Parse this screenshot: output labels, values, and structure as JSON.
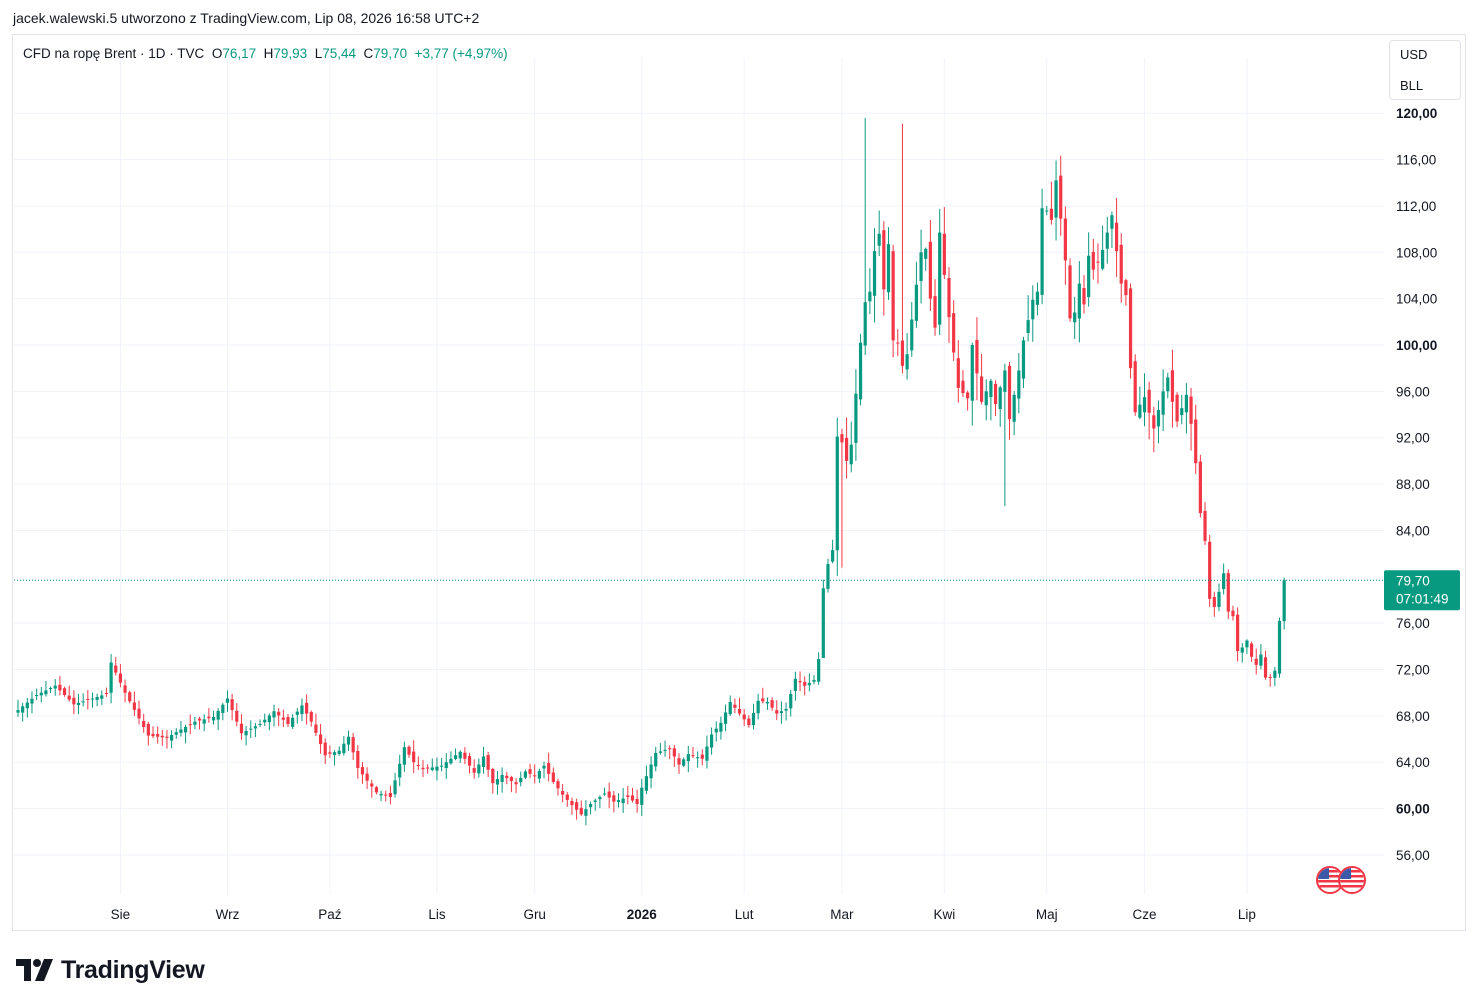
{
  "header": {
    "credit": "jacek.walewski.5 utworzono z TradingView.com, Lip 08, 2026 16:58 UTC+2"
  },
  "legend": {
    "symbol": "CFD na ropę Brent · 1D · TVC",
    "open_label": "O",
    "open": "76,17",
    "high_label": "H",
    "high": "79,93",
    "low_label": "L",
    "low": "75,44",
    "close_label": "C",
    "close": "79,70",
    "change": "+3,77 (+4,97%)"
  },
  "unit_selector": {
    "currency": "USD",
    "unit": "BLL"
  },
  "price_label": {
    "price": "79,70",
    "countdown": "07:01:49"
  },
  "brand": {
    "name": "TradingView"
  },
  "colors": {
    "up": "#089981",
    "down": "#f23645",
    "grid": "#f0f3fa",
    "axis_text": "#131722"
  },
  "icons": {
    "brand": "tradingview-logo-icon",
    "flags": "us-flag-icon"
  },
  "chart_data": {
    "type": "candlestick",
    "title": "CFD na ropę Brent",
    "interval": "1D",
    "currency": "USD",
    "ylim": [
      51,
      123
    ],
    "y_ticks": [
      {
        "value": 56,
        "label": "56,00"
      },
      {
        "value": 60,
        "label": "60,00"
      },
      {
        "value": 64,
        "label": "64,00"
      },
      {
        "value": 68,
        "label": "68,00"
      },
      {
        "value": 72,
        "label": "72,00"
      },
      {
        "value": 76,
        "label": "76,00"
      },
      {
        "value": 84,
        "label": "84,00"
      },
      {
        "value": 88,
        "label": "88,00"
      },
      {
        "value": 92,
        "label": "92,00"
      },
      {
        "value": 96,
        "label": "96,00"
      },
      {
        "value": 100,
        "label": "100,00"
      },
      {
        "value": 104,
        "label": "104,00"
      },
      {
        "value": 108,
        "label": "108,00"
      },
      {
        "value": 112,
        "label": "112,00"
      },
      {
        "value": 116,
        "label": "116,00"
      },
      {
        "value": 120,
        "label": "120,00"
      }
    ],
    "x_ticks": [
      {
        "index": 22,
        "label": "Sie"
      },
      {
        "index": 45,
        "label": "Wrz"
      },
      {
        "index": 67,
        "label": "Paź"
      },
      {
        "index": 90,
        "label": "Lis"
      },
      {
        "index": 111,
        "label": "Gru"
      },
      {
        "index": 134,
        "label": "2026"
      },
      {
        "index": 156,
        "label": "Lut"
      },
      {
        "index": 177,
        "label": "Mar"
      },
      {
        "index": 199,
        "label": "Kwi"
      },
      {
        "index": 221,
        "label": "Maj"
      },
      {
        "index": 242,
        "label": "Cze"
      },
      {
        "index": 264,
        "label": "Lip"
      }
    ],
    "last_price": 79.7,
    "path": [
      [
        0,
        68.5
      ],
      [
        4,
        69.8
      ],
      [
        8,
        70.6
      ],
      [
        12,
        69.0
      ],
      [
        16,
        69.5
      ],
      [
        19,
        69.9
      ],
      [
        20,
        72.6
      ],
      [
        23,
        70.0
      ],
      [
        28,
        66.3
      ],
      [
        32,
        66.1
      ],
      [
        34,
        66.6
      ],
      [
        38,
        67.5
      ],
      [
        42,
        67.9
      ],
      [
        45,
        69.5
      ],
      [
        48,
        66.5
      ],
      [
        52,
        67.3
      ],
      [
        55,
        68.4
      ],
      [
        58,
        67.3
      ],
      [
        61,
        68.9
      ],
      [
        63,
        67.5
      ],
      [
        66,
        64.6
      ],
      [
        69,
        65.0
      ],
      [
        71,
        66.2
      ],
      [
        73,
        63.5
      ],
      [
        75,
        62.4
      ],
      [
        77,
        61.4
      ],
      [
        80,
        61.0
      ],
      [
        83,
        65.3
      ],
      [
        85,
        64.0
      ],
      [
        87,
        63.4
      ],
      [
        91,
        63.7
      ],
      [
        95,
        64.9
      ],
      [
        98,
        63.1
      ],
      [
        100,
        64.5
      ],
      [
        102,
        62.2
      ],
      [
        104,
        62.9
      ],
      [
        107,
        62.1
      ],
      [
        109,
        63.2
      ],
      [
        111,
        62.8
      ],
      [
        113,
        63.7
      ],
      [
        115,
        62.3
      ],
      [
        117,
        61.2
      ],
      [
        119,
        60.3
      ],
      [
        121,
        59.5
      ],
      [
        123,
        60.4
      ],
      [
        126,
        61.3
      ],
      [
        128,
        60.6
      ],
      [
        131,
        61.0
      ],
      [
        133,
        60.4
      ],
      [
        134,
        61.8
      ],
      [
        137,
        64.8
      ],
      [
        140,
        65.2
      ],
      [
        142,
        63.8
      ],
      [
        144,
        64.7
      ],
      [
        147,
        64.3
      ],
      [
        149,
        66.4
      ],
      [
        151,
        67.4
      ],
      [
        153,
        69.2
      ],
      [
        155,
        68.2
      ],
      [
        157,
        67.2
      ],
      [
        159,
        69.3
      ],
      [
        161,
        69.2
      ],
      [
        163,
        68.2
      ],
      [
        165,
        68.6
      ],
      [
        167,
        71.2
      ],
      [
        169,
        70.6
      ],
      [
        171,
        71.1
      ],
      [
        172,
        72.9
      ],
      [
        173,
        79.0
      ],
      [
        174,
        81.1
      ],
      [
        175,
        82.3
      ],
      [
        176,
        92.1
      ],
      [
        177,
        91.6
      ],
      [
        178,
        90.0
      ],
      [
        179,
        91.4
      ],
      [
        181,
        100.2
      ],
      [
        182,
        103.7
      ],
      [
        183,
        104.6
      ],
      [
        184,
        108.1
      ],
      [
        185,
        109.6
      ],
      [
        186,
        104.8
      ],
      [
        187,
        108.7
      ],
      [
        188,
        100.4
      ],
      [
        189,
        100.2
      ],
      [
        190,
        98.2
      ],
      [
        191,
        99.2
      ],
      [
        193,
        105.2
      ],
      [
        194,
        108.0
      ],
      [
        195,
        108.3
      ],
      [
        196,
        104.0
      ],
      [
        197,
        101.5
      ],
      [
        198,
        109.7
      ],
      [
        200,
        102.4
      ],
      [
        202,
        96.3
      ],
      [
        204,
        95.4
      ],
      [
        205,
        100.0
      ],
      [
        207,
        95.1
      ],
      [
        209,
        96.9
      ],
      [
        210,
        94.9
      ],
      [
        212,
        97.8
      ],
      [
        213,
        93.6
      ],
      [
        215,
        97.8
      ],
      [
        216,
        100.4
      ],
      [
        218,
        103.9
      ],
      [
        219,
        104.6
      ],
      [
        220,
        111.8
      ],
      [
        221,
        111.6
      ],
      [
        222,
        110.8
      ],
      [
        223,
        114.2
      ],
      [
        224,
        110.9
      ],
      [
        225,
        107.3
      ],
      [
        226,
        102.3
      ],
      [
        227,
        102.8
      ],
      [
        228,
        105.3
      ],
      [
        229,
        103.5
      ],
      [
        230,
        107.7
      ],
      [
        231,
        106.5
      ],
      [
        232,
        107.1
      ],
      [
        233,
        108.2
      ],
      [
        235,
        111.2
      ],
      [
        236,
        108.1
      ],
      [
        237,
        105.3
      ],
      [
        238,
        104.3
      ],
      [
        239,
        98.0
      ],
      [
        240,
        94.2
      ],
      [
        242,
        95.5
      ],
      [
        244,
        92.8
      ],
      [
        246,
        96.0
      ],
      [
        247,
        97.2
      ],
      [
        248,
        95.1
      ],
      [
        249,
        93.4
      ],
      [
        251,
        95.7
      ],
      [
        252,
        93.2
      ],
      [
        253,
        89.8
      ],
      [
        254,
        85.5
      ],
      [
        255,
        83.1
      ],
      [
        256,
        78.1
      ],
      [
        257,
        77.4
      ],
      [
        258,
        78.7
      ],
      [
        259,
        80.3
      ],
      [
        260,
        77.0
      ],
      [
        261,
        76.6
      ],
      [
        262,
        73.6
      ],
      [
        263,
        73.9
      ],
      [
        264,
        74.5
      ],
      [
        265,
        73.1
      ],
      [
        266,
        72.4
      ],
      [
        267,
        73.3
      ],
      [
        268,
        71.3
      ],
      [
        269,
        71.3
      ],
      [
        270,
        71.9
      ],
      [
        271,
        76.2
      ],
      [
        272,
        79.7
      ]
    ]
  }
}
